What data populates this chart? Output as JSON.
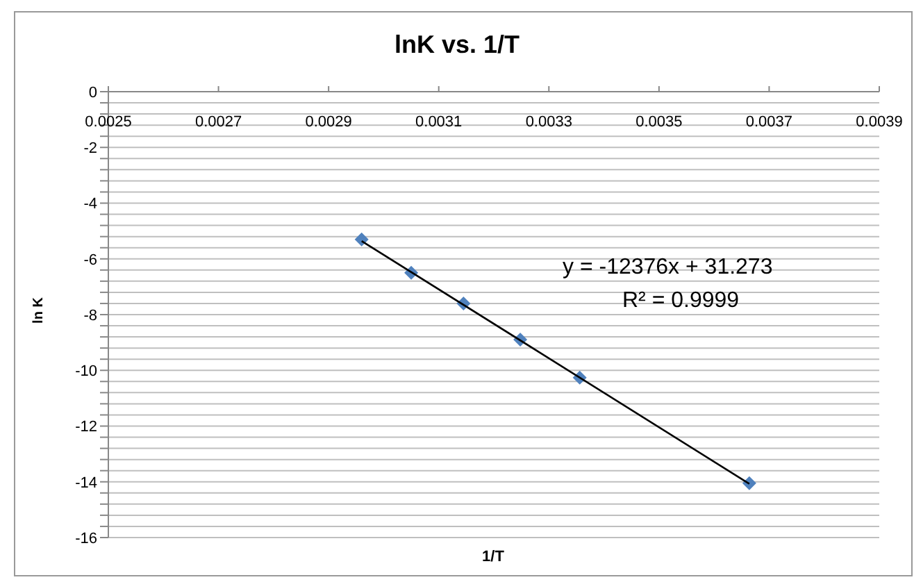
{
  "chart_data": {
    "type": "scatter",
    "title": "lnK vs. 1/T",
    "xlabel": "1/T",
    "ylabel": "ln K",
    "annotations": [
      "y = -12376x + 31.273",
      "R² = 0.9999"
    ],
    "series": [
      {
        "color": "#4f81bd",
        "x": [
          0.00296,
          0.00305,
          0.003145,
          0.003248,
          0.003356,
          0.003664
        ],
        "values": [
          -5.3,
          -6.5,
          -7.6,
          -8.9,
          -10.26,
          -14.05
        ],
        "marker": "diamond"
      },
      {
        "type": "line",
        "color": "#000000",
        "x": [
          0.00296,
          0.003664
        ],
        "values": [
          -5.36,
          -14.07
        ],
        "marker": "none"
      }
    ],
    "xlim": [
      0.0025,
      0.0039
    ],
    "xticks": [
      0.0025,
      0.0027,
      0.0029,
      0.0031,
      0.0033,
      0.0035,
      0.0037,
      0.0039
    ],
    "ylim": [
      -16,
      0
    ],
    "yticks": [
      0,
      {
        "value": -0.4,
        "label": null
      },
      {
        "value": -0.8,
        "label": null
      },
      {
        "value": -1.2,
        "label": null
      },
      {
        "value": -1.6,
        "label": null
      },
      -2,
      {
        "value": -2.4,
        "label": null
      },
      {
        "value": -2.8,
        "label": null
      },
      {
        "value": -3.2,
        "label": null
      },
      {
        "value": -3.6,
        "label": null
      },
      -4,
      {
        "value": -4.4,
        "label": null
      },
      {
        "value": -4.8,
        "label": null
      },
      {
        "value": -5.2,
        "label": null
      },
      {
        "value": -5.6,
        "label": null
      },
      -6,
      {
        "value": -6.4,
        "label": null
      },
      {
        "value": -6.8,
        "label": null
      },
      {
        "value": -7.2,
        "label": null
      },
      {
        "value": -7.6,
        "label": null
      },
      -8,
      {
        "value": -8.4,
        "label": null
      },
      {
        "value": -8.8,
        "label": null
      },
      {
        "value": -9.2,
        "label": null
      },
      {
        "value": -9.6,
        "label": null
      },
      -10,
      {
        "value": -10.4,
        "label": null
      },
      {
        "value": -10.8,
        "label": null
      },
      {
        "value": -11.2,
        "label": null
      },
      {
        "value": -11.6,
        "label": null
      },
      -12,
      {
        "value": -12.4,
        "label": null
      },
      {
        "value": -12.8,
        "label": null
      },
      {
        "value": -13.2,
        "label": null
      },
      {
        "value": -13.6,
        "label": null
      },
      -14,
      {
        "value": -14.4,
        "label": null
      },
      {
        "value": -14.8,
        "label": null
      },
      {
        "value": -15.2,
        "label": null
      },
      {
        "value": -15.6,
        "label": null
      },
      -16
    ],
    "grid": "y",
    "legend": false
  }
}
